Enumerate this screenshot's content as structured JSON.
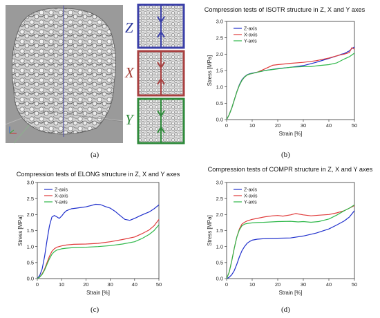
{
  "panels": {
    "a": "(a)",
    "b": "(b)",
    "c": "(c)",
    "d": "(d)"
  },
  "render_panel": {
    "axis_letters": [
      {
        "letter": "Z",
        "color": "#2e3a9c"
      },
      {
        "letter": "X",
        "color": "#a33b33"
      },
      {
        "letter": "Y",
        "color": "#2e8a3a"
      }
    ]
  },
  "colors": {
    "z": "#1f2fcc",
    "x": "#e03a3a",
    "y": "#2fb84a"
  },
  "chart_data": [
    {
      "id": "b",
      "type": "line",
      "title": "Compression tests of ISOTR structure in Z, X and Y axes",
      "xlabel": "Strain [%]",
      "ylabel": "Stress [MPa]",
      "xlim": [
        0,
        50
      ],
      "ylim": [
        0,
        3.0
      ],
      "xticks": [
        "0",
        "10",
        "20",
        "30",
        "40",
        "50"
      ],
      "yticks": [
        "0.0",
        "0.5",
        "1.0",
        "1.5",
        "2.0",
        "2.5",
        "3.0"
      ],
      "legend_position": "top-left",
      "series": [
        {
          "name": "Z-axis",
          "key": "z",
          "x": [
            0,
            1,
            2,
            3,
            4,
            5,
            6,
            7,
            8,
            9,
            10,
            12,
            15,
            20,
            25,
            30,
            35,
            40,
            44,
            45,
            46,
            47,
            48,
            49,
            50
          ],
          "y": [
            0,
            0.15,
            0.35,
            0.6,
            0.85,
            1.07,
            1.22,
            1.31,
            1.37,
            1.4,
            1.42,
            1.45,
            1.5,
            1.56,
            1.6,
            1.65,
            1.75,
            1.87,
            1.97,
            2.0,
            2.02,
            2.06,
            2.1,
            2.17,
            2.22
          ]
        },
        {
          "name": "X-axis",
          "key": "x",
          "x": [
            0,
            1,
            2,
            3,
            4,
            5,
            6,
            7,
            8,
            9,
            10,
            12,
            15,
            18,
            20,
            25,
            30,
            35,
            40,
            44,
            46,
            48,
            49,
            50
          ],
          "y": [
            0,
            0.15,
            0.35,
            0.6,
            0.85,
            1.05,
            1.2,
            1.3,
            1.36,
            1.39,
            1.41,
            1.45,
            1.55,
            1.66,
            1.68,
            1.72,
            1.75,
            1.8,
            1.88,
            1.97,
            2.0,
            2.05,
            2.2,
            2.15
          ]
        },
        {
          "name": "Y-axis",
          "key": "y",
          "x": [
            0,
            1,
            2,
            3,
            4,
            5,
            6,
            7,
            8,
            9,
            10,
            12,
            15,
            20,
            25,
            30,
            33,
            36,
            40,
            43,
            46,
            48,
            50
          ],
          "y": [
            0,
            0.15,
            0.35,
            0.6,
            0.85,
            1.05,
            1.2,
            1.3,
            1.36,
            1.39,
            1.41,
            1.45,
            1.5,
            1.55,
            1.6,
            1.62,
            1.62,
            1.65,
            1.68,
            1.73,
            1.85,
            1.92,
            2.03
          ]
        }
      ]
    },
    {
      "id": "c",
      "type": "line",
      "title": "Compression tests of ELONG structure in Z, X and Y axes",
      "xlabel": "Strain [%]",
      "ylabel": "Stress [MPa]",
      "xlim": [
        0,
        50
      ],
      "ylim": [
        0,
        3.0
      ],
      "xticks": [
        "0",
        "10",
        "20",
        "30",
        "40",
        "50"
      ],
      "yticks": [
        "0.0",
        "0.5",
        "1.0",
        "1.5",
        "2.0",
        "2.5",
        "3.0"
      ],
      "legend_position": "top-left",
      "series": [
        {
          "name": "Z-axis",
          "key": "z",
          "x": [
            0,
            1,
            2,
            3,
            4,
            5,
            6,
            7,
            8,
            9,
            10,
            11,
            12,
            14,
            16,
            18,
            20,
            22,
            24,
            26,
            28,
            30,
            32,
            34,
            36,
            38,
            40,
            42,
            44,
            46,
            48,
            50
          ],
          "y": [
            0,
            0.1,
            0.3,
            0.7,
            1.2,
            1.65,
            1.92,
            1.97,
            1.93,
            1.88,
            1.95,
            2.05,
            2.12,
            2.18,
            2.2,
            2.22,
            2.24,
            2.28,
            2.32,
            2.31,
            2.25,
            2.2,
            2.1,
            1.97,
            1.85,
            1.82,
            1.88,
            1.95,
            2.02,
            2.08,
            2.18,
            2.3
          ]
        },
        {
          "name": "X-axis",
          "key": "x",
          "x": [
            0,
            1,
            2,
            3,
            4,
            5,
            6,
            7,
            8,
            10,
            12,
            15,
            20,
            25,
            30,
            35,
            40,
            43,
            46,
            48,
            50
          ],
          "y": [
            0,
            0.05,
            0.15,
            0.3,
            0.5,
            0.7,
            0.85,
            0.93,
            0.98,
            1.02,
            1.05,
            1.07,
            1.08,
            1.1,
            1.15,
            1.22,
            1.3,
            1.4,
            1.52,
            1.65,
            1.85
          ]
        },
        {
          "name": "Y-axis",
          "key": "y",
          "x": [
            0,
            1,
            2,
            3,
            4,
            5,
            6,
            7,
            8,
            10,
            12,
            15,
            20,
            25,
            30,
            35,
            40,
            43,
            46,
            48,
            50
          ],
          "y": [
            0,
            0.05,
            0.13,
            0.27,
            0.45,
            0.62,
            0.76,
            0.84,
            0.89,
            0.93,
            0.95,
            0.97,
            0.98,
            1.0,
            1.03,
            1.08,
            1.15,
            1.25,
            1.38,
            1.5,
            1.68
          ]
        }
      ]
    },
    {
      "id": "d",
      "type": "line",
      "title": "Compression tests of COMPR structure in Z, X and Y axes",
      "xlabel": "Strain [%]",
      "ylabel": "Stress [MPa]",
      "xlim": [
        0,
        50
      ],
      "ylim": [
        0,
        3.0
      ],
      "xticks": [
        "0",
        "10",
        "20",
        "30",
        "40",
        "50"
      ],
      "yticks": [
        "0.0",
        "0.5",
        "1.0",
        "1.5",
        "2.0",
        "2.5",
        "3.0"
      ],
      "legend_position": "top-left",
      "series": [
        {
          "name": "Z-axis",
          "key": "z",
          "x": [
            0,
            1,
            2,
            3,
            4,
            5,
            6,
            7,
            8,
            9,
            10,
            12,
            15,
            20,
            25,
            30,
            35,
            40,
            43,
            46,
            48,
            50
          ],
          "y": [
            0,
            0.04,
            0.12,
            0.25,
            0.45,
            0.68,
            0.87,
            1.0,
            1.1,
            1.16,
            1.2,
            1.23,
            1.25,
            1.26,
            1.27,
            1.33,
            1.42,
            1.55,
            1.67,
            1.8,
            1.92,
            2.12
          ]
        },
        {
          "name": "X-axis",
          "key": "x",
          "x": [
            0,
            1,
            2,
            3,
            4,
            5,
            6,
            7,
            8,
            10,
            12,
            15,
            18,
            20,
            22,
            25,
            27,
            30,
            33,
            36,
            40,
            43,
            46,
            48,
            50
          ],
          "y": [
            0,
            0.2,
            0.55,
            0.95,
            1.3,
            1.55,
            1.7,
            1.76,
            1.8,
            1.85,
            1.88,
            1.93,
            1.96,
            1.97,
            1.95,
            1.99,
            2.03,
            1.99,
            1.96,
            1.98,
            2.0,
            2.05,
            2.12,
            2.2,
            2.28
          ]
        },
        {
          "name": "Y-axis",
          "key": "y",
          "x": [
            0,
            1,
            2,
            3,
            4,
            5,
            6,
            7,
            8,
            10,
            12,
            15,
            20,
            25,
            28,
            30,
            33,
            36,
            40,
            43,
            46,
            48,
            50
          ],
          "y": [
            0,
            0.2,
            0.55,
            0.95,
            1.3,
            1.52,
            1.65,
            1.7,
            1.72,
            1.74,
            1.75,
            1.76,
            1.78,
            1.79,
            1.77,
            1.78,
            1.76,
            1.78,
            1.86,
            1.98,
            2.12,
            2.2,
            2.3
          ]
        }
      ]
    }
  ]
}
